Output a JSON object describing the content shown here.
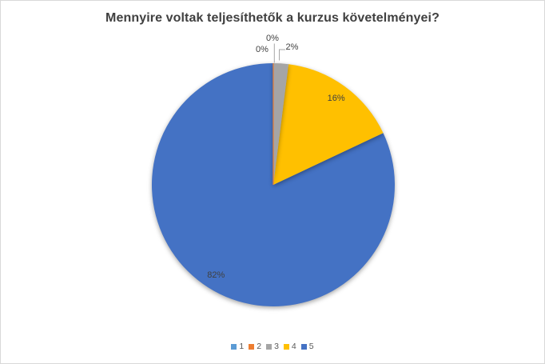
{
  "window": {
    "background": "#FFFFFF",
    "border_color": "#D9D9D9"
  },
  "chart_data": {
    "type": "pie",
    "title": "Mennyire voltak teljesíthetők a kurzus követelményei?",
    "categories": [
      "1",
      "2",
      "3",
      "4",
      "5"
    ],
    "values": [
      0,
      0,
      2,
      16,
      82
    ],
    "unit": "%",
    "data_labels": [
      "0%",
      "0%",
      "2%",
      "16%",
      "82%"
    ],
    "colors": [
      "#5B9BD5",
      "#ED7D31",
      "#A5A5A5",
      "#FFC000",
      "#4472C4"
    ],
    "legend_position": "bottom",
    "start_angle_deg": 0,
    "direction": "clockwise",
    "grid": "off",
    "label_color": "#404040",
    "leader_line_color": "#A6A6A6",
    "title_color": "#404040",
    "legend_text_color": "#595959"
  }
}
